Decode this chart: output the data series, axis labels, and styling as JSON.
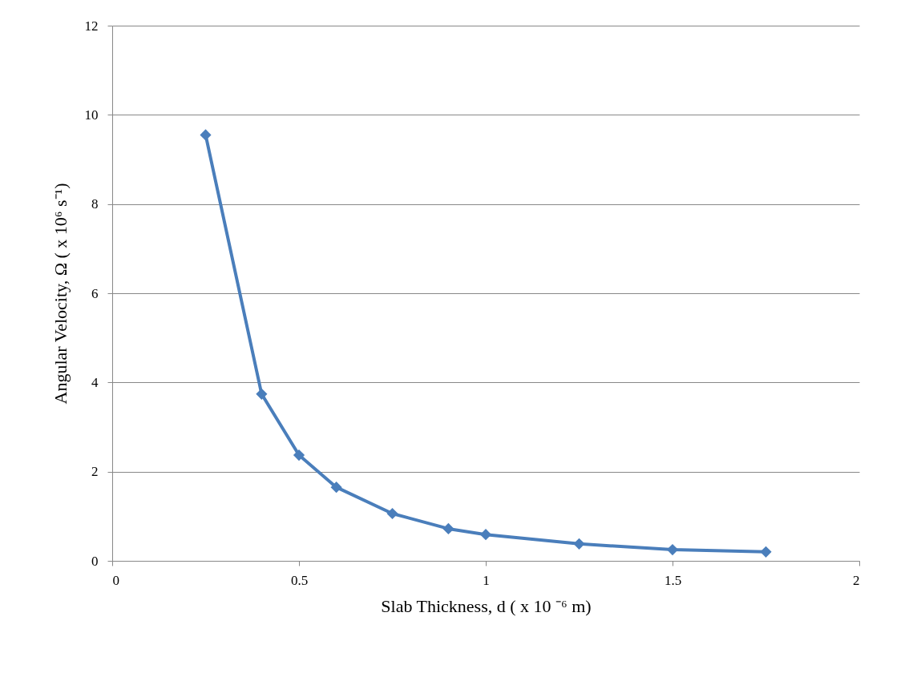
{
  "chart_data": {
    "type": "line",
    "xlabel": "Slab Thickness, d (  x 10 ⁻⁶ m)",
    "ylabel": "Angular Velocity, Ω ( x 10⁶ s⁻¹)",
    "x": [
      0.25,
      0.4,
      0.5,
      0.6,
      0.75,
      0.9,
      1,
      1.25,
      1.5,
      1.75
    ],
    "series": [
      {
        "color": "#4a7ebb",
        "values": [
          9.55,
          3.74,
          2.37,
          1.65,
          1.06,
          0.72,
          0.59,
          0.38,
          0.25,
          0.2
        ]
      }
    ],
    "xlim": [
      0,
      2
    ],
    "xticks": [
      0,
      0.5,
      1,
      1.5,
      2
    ],
    "ylim": [
      0,
      12
    ],
    "yticks": [
      0,
      2,
      4,
      6,
      8,
      10,
      12
    ],
    "grid": "y",
    "marker": "diamond",
    "line_style": "solid"
  }
}
